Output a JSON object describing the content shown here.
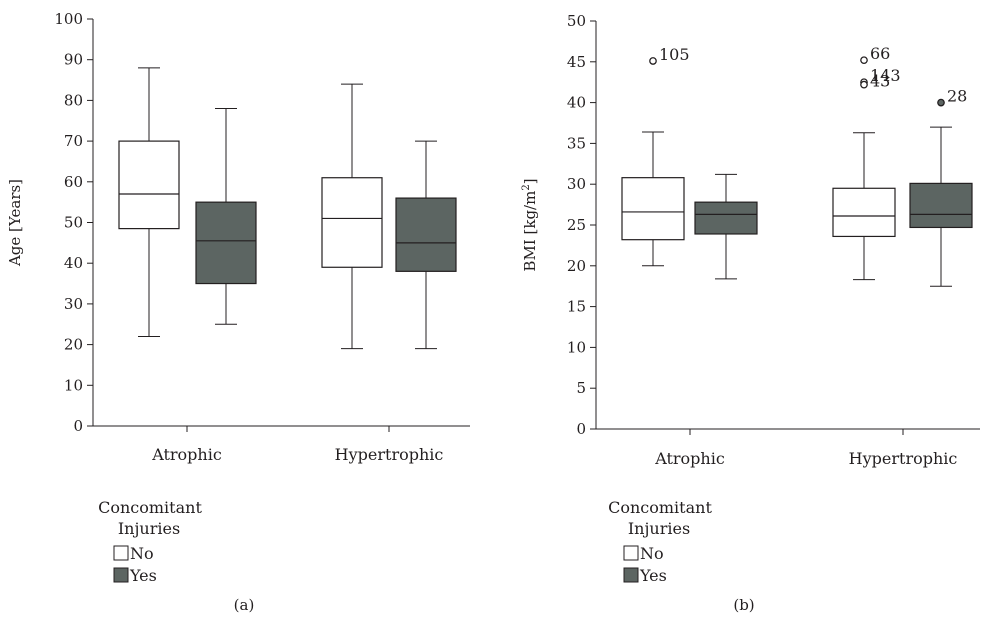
{
  "colors": {
    "no": "#ffffff",
    "yes": "#5c6562",
    "stroke": "#231f20"
  },
  "legend": {
    "title_line1": "Concomitant",
    "title_line2": "Injuries",
    "no_label": "No",
    "yes_label": "Yes"
  },
  "chart_data": [
    {
      "panel_label": "(a)",
      "type": "box",
      "ylabel": "Age [Years]",
      "ylim": [
        0,
        100
      ],
      "yticks": [
        0,
        10,
        20,
        30,
        40,
        50,
        60,
        70,
        80,
        90,
        100
      ],
      "categories": [
        "Atrophic",
        "Hypertrophic"
      ],
      "series": [
        {
          "name": "No",
          "boxes": [
            {
              "category": "Atrophic",
              "min": 22,
              "q1": 48.5,
              "median": 57,
              "q3": 70,
              "max": 88
            },
            {
              "category": "Hypertrophic",
              "min": 19,
              "q1": 39,
              "median": 51,
              "q3": 61,
              "max": 84
            }
          ]
        },
        {
          "name": "Yes",
          "boxes": [
            {
              "category": "Atrophic",
              "min": 25,
              "q1": 35,
              "median": 45.5,
              "q3": 55,
              "max": 78
            },
            {
              "category": "Hypertrophic",
              "min": 19,
              "q1": 38,
              "median": 45,
              "q3": 56,
              "max": 70
            }
          ]
        }
      ],
      "outliers": []
    },
    {
      "panel_label": "(b)",
      "type": "box",
      "ylabel": "BMI [kg/m",
      "ylabel_sup": "2",
      "ylabel_end": "]",
      "ylim": [
        0,
        50
      ],
      "yticks": [
        0,
        5,
        10,
        15,
        20,
        25,
        30,
        35,
        40,
        45,
        50
      ],
      "categories": [
        "Atrophic",
        "Hypertrophic"
      ],
      "series": [
        {
          "name": "No",
          "boxes": [
            {
              "category": "Atrophic",
              "min": 20,
              "q1": 23.2,
              "median": 26.6,
              "q3": 30.8,
              "max": 36.4
            },
            {
              "category": "Hypertrophic",
              "min": 18.3,
              "q1": 23.6,
              "median": 26.1,
              "q3": 29.5,
              "max": 36.3
            }
          ]
        },
        {
          "name": "Yes",
          "boxes": [
            {
              "category": "Atrophic",
              "min": 18.4,
              "q1": 23.9,
              "median": 26.3,
              "q3": 27.8,
              "max": 31.2
            },
            {
              "category": "Hypertrophic",
              "min": 17.5,
              "q1": 24.7,
              "median": 26.3,
              "q3": 30.1,
              "max": 37
            }
          ]
        }
      ],
      "outliers": [
        {
          "category": "Atrophic",
          "series": "No",
          "value": 45.1,
          "label": "105"
        },
        {
          "category": "Hypertrophic",
          "series": "No",
          "value": 45.2,
          "label": "66"
        },
        {
          "category": "Hypertrophic",
          "series": "No",
          "value": 42.5,
          "label": "143"
        },
        {
          "category": "Hypertrophic",
          "series": "No",
          "value": 42.2,
          "label": "43"
        },
        {
          "category": "Hypertrophic",
          "series": "Yes",
          "value": 40,
          "label": "28"
        }
      ]
    }
  ]
}
